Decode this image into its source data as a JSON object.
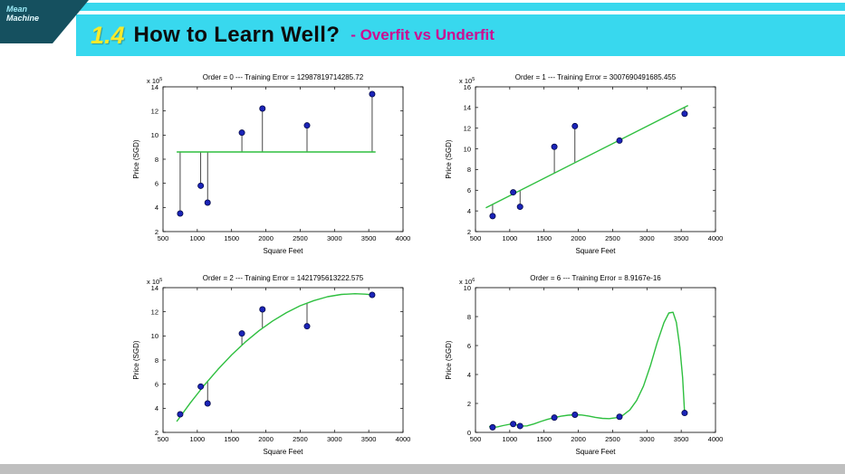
{
  "slide": {
    "logo_line1": "Mean",
    "logo_line2": "Machine",
    "title_number": "1.4",
    "title_main": "How to Learn Well?",
    "title_sub": "- Overfit vs Underfit"
  },
  "colors": {
    "cyan": "#38d8ee",
    "logo-dark": "#15505f",
    "yellow": "#f8ea2a",
    "magenta": "#cc0d92",
    "green": "#2ebf3f",
    "point-blue": "#1b24b8",
    "point-edge": "#050a4a",
    "footer-gray": "#bfbfbf"
  },
  "chart_data": [
    {
      "type": "scatter",
      "order": 0,
      "title": "Order = 0 --- Training Error = 12987819714285.72",
      "xlabel": "Square Feet",
      "ylabel": "Price (SGD)",
      "exponent": {
        "mantissa": "x 10",
        "power": "5"
      },
      "xlim": [
        500,
        4000
      ],
      "ylim": [
        2,
        14
      ],
      "xticks": [
        500,
        1000,
        1500,
        2000,
        2500,
        3000,
        3500,
        4000
      ],
      "yticks": [
        2,
        4,
        6,
        8,
        10,
        12,
        14
      ],
      "grid": false,
      "legend": null,
      "points": [
        [
          750,
          3.5
        ],
        [
          1050,
          5.8
        ],
        [
          1150,
          4.4
        ],
        [
          1650,
          10.2
        ],
        [
          1950,
          12.2
        ],
        [
          2600,
          10.8
        ],
        [
          3550,
          13.4
        ]
      ],
      "fit_line": [
        [
          700,
          8.6
        ],
        [
          3600,
          8.6
        ]
      ],
      "stems": [
        [
          750,
          3.5,
          8.6
        ],
        [
          1050,
          5.8,
          8.6
        ],
        [
          1150,
          4.4,
          8.6
        ],
        [
          1650,
          10.2,
          8.6
        ],
        [
          1950,
          12.2,
          8.6
        ],
        [
          2600,
          10.8,
          8.6
        ],
        [
          3550,
          13.4,
          8.6
        ]
      ]
    },
    {
      "type": "scatter",
      "order": 1,
      "title": "Order = 1 --- Training Error = 3007690491685.455",
      "xlabel": "Square Feet",
      "ylabel": "Price (SGD)",
      "exponent": {
        "mantissa": "x 10",
        "power": "5"
      },
      "xlim": [
        500,
        4000
      ],
      "ylim": [
        2,
        16
      ],
      "xticks": [
        500,
        1000,
        1500,
        2000,
        2500,
        3000,
        3500,
        4000
      ],
      "yticks": [
        2,
        4,
        6,
        8,
        10,
        12,
        14,
        16
      ],
      "grid": false,
      "legend": null,
      "points": [
        [
          750,
          3.5
        ],
        [
          1050,
          5.8
        ],
        [
          1150,
          4.4
        ],
        [
          1650,
          10.2
        ],
        [
          1950,
          12.2
        ],
        [
          2600,
          10.8
        ],
        [
          3550,
          13.4
        ]
      ],
      "fit_line": [
        [
          650,
          4.3
        ],
        [
          3600,
          14.2
        ]
      ],
      "stems": [
        [
          750,
          3.5,
          4.64
        ],
        [
          1050,
          5.8,
          5.64
        ],
        [
          1150,
          4.4,
          5.98
        ],
        [
          1650,
          10.2,
          7.66
        ],
        [
          1950,
          12.2,
          8.66
        ],
        [
          2600,
          10.8,
          10.84
        ],
        [
          3550,
          13.4,
          14.03
        ]
      ]
    },
    {
      "type": "scatter",
      "order": 2,
      "title": "Order = 2 --- Training Error = 1421795613222.575",
      "xlabel": "Square Feet",
      "ylabel": "Price (SGD)",
      "exponent": {
        "mantissa": "x 10",
        "power": "5"
      },
      "xlim": [
        500,
        4000
      ],
      "ylim": [
        2,
        14
      ],
      "xticks": [
        500,
        1000,
        1500,
        2000,
        2500,
        3000,
        3500,
        4000
      ],
      "yticks": [
        2,
        4,
        6,
        8,
        10,
        12,
        14
      ],
      "grid": false,
      "legend": null,
      "points": [
        [
          750,
          3.5
        ],
        [
          1050,
          5.8
        ],
        [
          1150,
          4.4
        ],
        [
          1650,
          10.2
        ],
        [
          1950,
          12.2
        ],
        [
          2600,
          10.8
        ],
        [
          3550,
          13.4
        ]
      ],
      "fit_line": [
        [
          700,
          2.9
        ],
        [
          900,
          4.46
        ],
        [
          1100,
          5.9
        ],
        [
          1300,
          7.22
        ],
        [
          1500,
          8.42
        ],
        [
          1700,
          9.49
        ],
        [
          1900,
          10.43
        ],
        [
          2100,
          11.24
        ],
        [
          2300,
          11.93
        ],
        [
          2500,
          12.5
        ],
        [
          2700,
          12.93
        ],
        [
          2900,
          13.25
        ],
        [
          3100,
          13.44
        ],
        [
          3300,
          13.5
        ],
        [
          3450,
          13.46
        ],
        [
          3570,
          13.39
        ]
      ],
      "stems": [
        [
          750,
          3.5,
          3.6
        ],
        [
          1050,
          5.8,
          5.6
        ],
        [
          1150,
          4.4,
          6.2
        ],
        [
          1650,
          10.2,
          9.23
        ],
        [
          1950,
          12.2,
          10.64
        ],
        [
          2600,
          10.8,
          12.73
        ],
        [
          3550,
          13.4,
          13.4
        ]
      ]
    },
    {
      "type": "scatter",
      "order": 6,
      "title": "Order = 6 --- Training Error = 8.9167e-16",
      "xlabel": "Square Feet",
      "ylabel": "Price (SGD)",
      "exponent": {
        "mantissa": "x 10",
        "power": "6"
      },
      "xlim": [
        500,
        4000
      ],
      "ylim": [
        0,
        10
      ],
      "xticks": [
        500,
        1000,
        1500,
        2000,
        2500,
        3000,
        3500,
        4000
      ],
      "yticks": [
        0,
        2,
        4,
        6,
        8,
        10
      ],
      "grid": false,
      "legend": null,
      "points": [
        [
          750,
          0.35
        ],
        [
          1050,
          0.58
        ],
        [
          1150,
          0.44
        ],
        [
          1650,
          1.02
        ],
        [
          1950,
          1.22
        ],
        [
          2600,
          1.08
        ],
        [
          3550,
          1.34
        ]
      ],
      "fit_line": [
        [
          700,
          0.42
        ],
        [
          750,
          0.35
        ],
        [
          820,
          0.38
        ],
        [
          900,
          0.47
        ],
        [
          1000,
          0.56
        ],
        [
          1050,
          0.58
        ],
        [
          1100,
          0.52
        ],
        [
          1150,
          0.44
        ],
        [
          1250,
          0.45
        ],
        [
          1350,
          0.58
        ],
        [
          1450,
          0.75
        ],
        [
          1550,
          0.9
        ],
        [
          1650,
          1.02
        ],
        [
          1750,
          1.12
        ],
        [
          1850,
          1.19
        ],
        [
          1950,
          1.22
        ],
        [
          2050,
          1.2
        ],
        [
          2150,
          1.13
        ],
        [
          2250,
          1.04
        ],
        [
          2350,
          0.97
        ],
        [
          2450,
          0.95
        ],
        [
          2550,
          1.01
        ],
        [
          2650,
          1.18
        ],
        [
          2750,
          1.55
        ],
        [
          2850,
          2.2
        ],
        [
          2950,
          3.2
        ],
        [
          3050,
          4.6
        ],
        [
          3150,
          6.2
        ],
        [
          3250,
          7.6
        ],
        [
          3320,
          8.25
        ],
        [
          3380,
          8.3
        ],
        [
          3430,
          7.6
        ],
        [
          3480,
          5.9
        ],
        [
          3520,
          3.8
        ],
        [
          3550,
          1.34
        ]
      ],
      "stems": []
    }
  ]
}
